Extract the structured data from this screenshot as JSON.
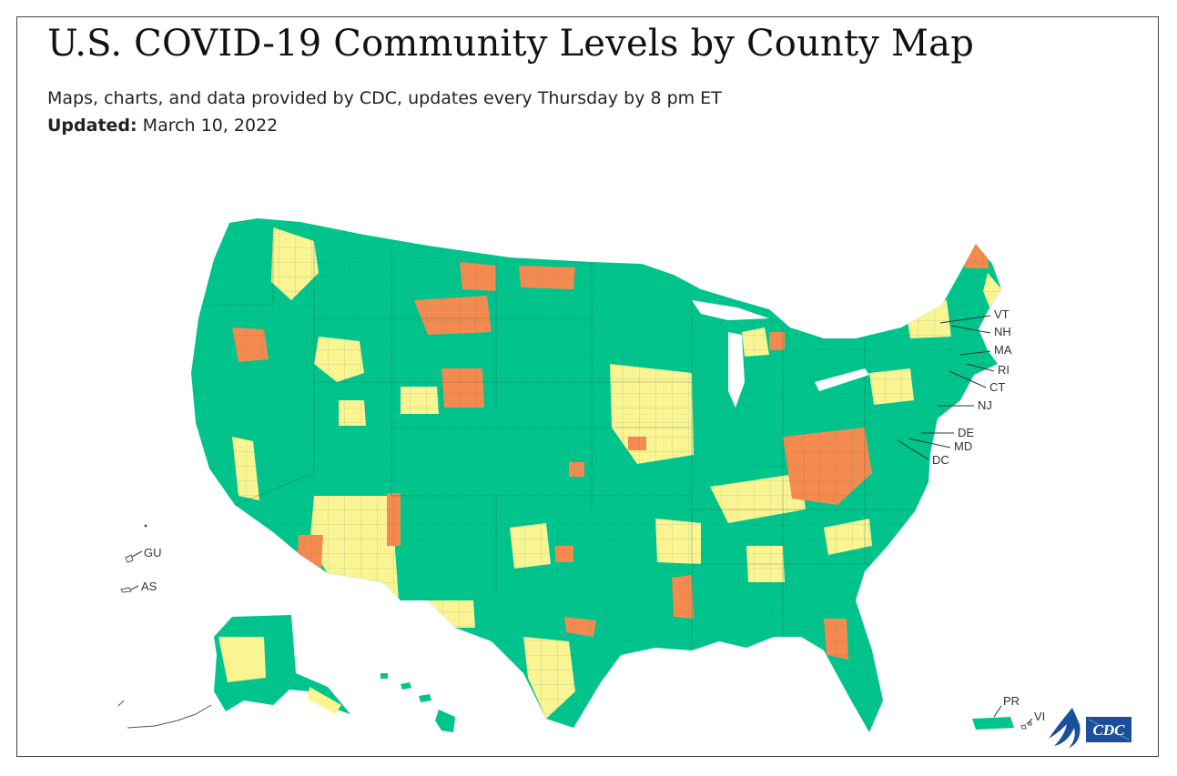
{
  "header": {
    "title": "U.S. COVID-19 Community Levels by County Map",
    "subtitle": "Maps, charts, and data provided by CDC, updates every Thursday by 8 pm ET",
    "updated_label": "Updated:",
    "updated_value": "March 10, 2022"
  },
  "colors": {
    "low": "#00c48c",
    "medium": "#fbf493",
    "high": "#f48a50",
    "frame": "#444444",
    "logo_blue": "#1a4f9c"
  },
  "labels": {
    "vt": "VT",
    "nh": "NH",
    "ma": "MA",
    "ri": "RI",
    "ct": "CT",
    "nj": "NJ",
    "de": "DE",
    "md": "MD",
    "dc": "DC",
    "gu": "GU",
    "as": "AS",
    "pr": "PR",
    "vi": "VI"
  },
  "logos": {
    "hhs_icon": "hhs-eagle-icon",
    "cdc_logo_text": "CDC"
  }
}
